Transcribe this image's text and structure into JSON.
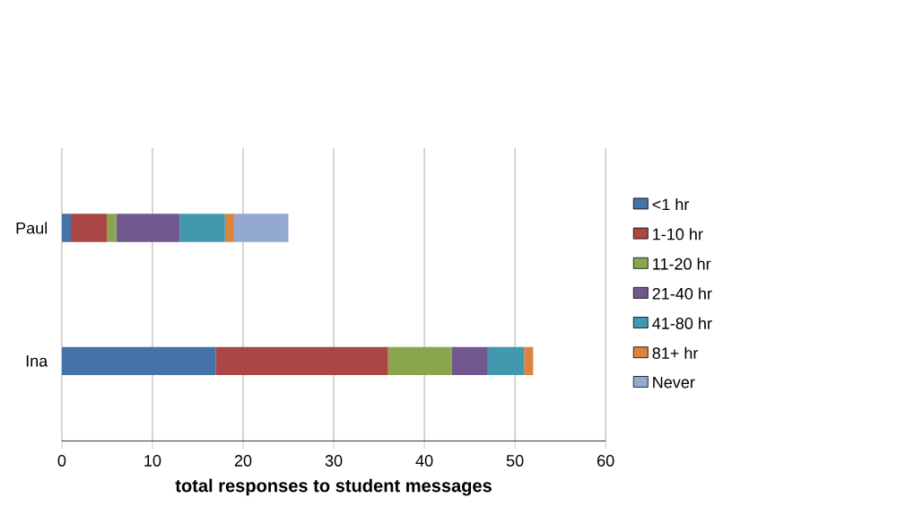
{
  "chart_data": {
    "type": "bar",
    "orientation": "horizontal",
    "stacked": true,
    "xlabel": "total responses to student messages",
    "categories": [
      "Paul",
      "Ina"
    ],
    "series": [
      {
        "name": "<1 hr",
        "color": "#4572a7",
        "values": [
          1,
          17
        ]
      },
      {
        "name": "1-10 hr",
        "color": "#aa4643",
        "values": [
          4,
          19
        ]
      },
      {
        "name": "11-20 hr",
        "color": "#89a54e",
        "values": [
          1,
          7
        ]
      },
      {
        "name": "21-40 hr",
        "color": "#71588f",
        "values": [
          7,
          4
        ]
      },
      {
        "name": "41-80 hr",
        "color": "#4198af",
        "values": [
          5,
          4
        ]
      },
      {
        "name": "81+ hr",
        "color": "#db843d",
        "values": [
          1,
          1
        ]
      },
      {
        "name": "Never",
        "color": "#93a9cf",
        "values": [
          6,
          0
        ]
      }
    ],
    "xlim": [
      0,
      60
    ],
    "xticks": [
      0,
      10,
      20,
      30,
      40,
      50,
      60
    ],
    "grid": "x",
    "legend": "right"
  }
}
